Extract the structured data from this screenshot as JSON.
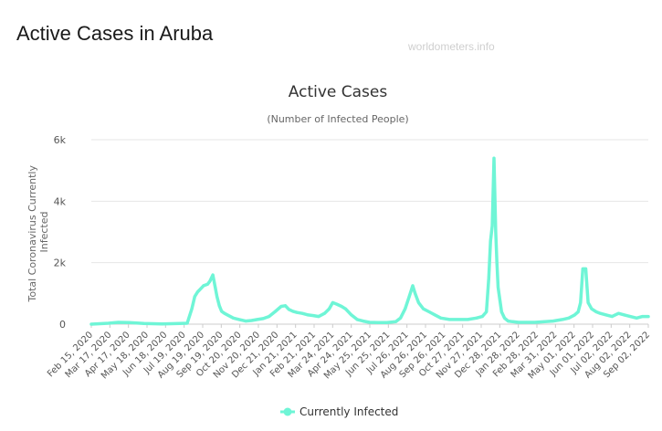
{
  "page": {
    "title": "Active Cases in Aruba",
    "watermark": "worldometers.info"
  },
  "colors": {
    "series": "#6ff5d6",
    "grid": "#e6e6e6",
    "text": "#555555"
  },
  "chart_data": {
    "type": "line",
    "title": "Active Cases",
    "subtitle": "(Number of Infected People)",
    "ylabel": "Total Coronavirus Currently Infected",
    "xlabel": "",
    "ylim": [
      0,
      6000
    ],
    "yticks": [
      {
        "value": 0,
        "label": "0"
      },
      {
        "value": 2000,
        "label": "2k"
      },
      {
        "value": 4000,
        "label": "4k"
      },
      {
        "value": 6000,
        "label": "6k"
      }
    ],
    "xtick_labels": [
      "Feb 15, 2020",
      "Mar 17, 2020",
      "Apr 17, 2020",
      "May 18, 2020",
      "Jun 18, 2020",
      "Jul 19, 2020",
      "Aug 19, 2020",
      "Sep 19, 2020",
      "Oct 20, 2020",
      "Nov 20, 2020",
      "Dec 21, 2020",
      "Jan 21, 2021",
      "Feb 21, 2021",
      "Mar 24, 2021",
      "Apr 24, 2021",
      "May 25, 2021",
      "Jun 25, 2021",
      "Jul 26, 2021",
      "Aug 26, 2021",
      "Sep 26, 2021",
      "Oct 27, 2021",
      "Nov 27, 2021",
      "Dec 28, 2021",
      "Jan 28, 2022",
      "Feb 28, 2022",
      "Mar 31, 2022",
      "May 01, 2022",
      "Jun 01, 2022",
      "Jul 02, 2022",
      "Aug 02, 2022",
      "Sep 02, 2022"
    ],
    "grid": true,
    "legend": {
      "position": "bottom-center"
    },
    "series": [
      {
        "name": "Currently Infected",
        "color": "#6ff5d6",
        "x": [
          "2020-02-15",
          "2020-03-15",
          "2020-04-01",
          "2020-04-20",
          "2020-05-15",
          "2020-06-15",
          "2020-07-15",
          "2020-07-28",
          "2020-08-05",
          "2020-08-10",
          "2020-08-15",
          "2020-08-20",
          "2020-08-25",
          "2020-09-01",
          "2020-09-05",
          "2020-09-10",
          "2020-09-14",
          "2020-09-17",
          "2020-09-21",
          "2020-09-25",
          "2020-09-30",
          "2020-10-05",
          "2020-10-15",
          "2020-10-25",
          "2020-11-05",
          "2020-11-15",
          "2020-11-25",
          "2020-12-05",
          "2020-12-15",
          "2020-12-25",
          "2021-01-05",
          "2021-01-12",
          "2021-01-18",
          "2021-01-25",
          "2021-02-01",
          "2021-02-10",
          "2021-02-20",
          "2021-03-01",
          "2021-03-10",
          "2021-03-20",
          "2021-03-28",
          "2021-04-03",
          "2021-04-10",
          "2021-04-18",
          "2021-04-25",
          "2021-05-05",
          "2021-05-15",
          "2021-05-25",
          "2021-06-05",
          "2021-06-20",
          "2021-07-05",
          "2021-07-20",
          "2021-07-28",
          "2021-08-05",
          "2021-08-12",
          "2021-08-18",
          "2021-08-22",
          "2021-08-28",
          "2021-09-05",
          "2021-09-15",
          "2021-09-25",
          "2021-10-05",
          "2021-10-20",
          "2021-11-05",
          "2021-11-20",
          "2021-12-05",
          "2021-12-15",
          "2021-12-22",
          "2021-12-26",
          "2021-12-29",
          "2022-01-01",
          "2022-01-04",
          "2022-01-07",
          "2022-01-09",
          "2022-01-11",
          "2022-01-14",
          "2022-01-17",
          "2022-01-22",
          "2022-01-28",
          "2022-02-05",
          "2022-02-15",
          "2022-03-01",
          "2022-03-15",
          "2022-04-01",
          "2022-04-15",
          "2022-05-01",
          "2022-05-12",
          "2022-05-22",
          "2022-05-28",
          "2022-06-01",
          "2022-06-05",
          "2022-06-10",
          "2022-06-14",
          "2022-06-20",
          "2022-06-28",
          "2022-07-05",
          "2022-07-15",
          "2022-07-25",
          "2022-08-05",
          "2022-08-15",
          "2022-08-25",
          "2022-09-05",
          "2022-09-15",
          "2022-09-25"
        ],
        "values": [
          0,
          30,
          60,
          50,
          20,
          10,
          20,
          30,
          500,
          900,
          1050,
          1150,
          1250,
          1300,
          1400,
          1600,
          1200,
          900,
          600,
          420,
          350,
          300,
          200,
          150,
          100,
          120,
          150,
          180,
          250,
          400,
          580,
          600,
          480,
          420,
          380,
          350,
          300,
          280,
          250,
          350,
          500,
          700,
          650,
          580,
          500,
          300,
          150,
          100,
          60,
          50,
          50,
          80,
          200,
          500,
          900,
          1250,
          1000,
          700,
          500,
          400,
          300,
          200,
          150,
          150,
          150,
          200,
          250,
          400,
          1500,
          2700,
          3200,
          5400,
          3000,
          2000,
          1200,
          800,
          400,
          200,
          100,
          80,
          60,
          60,
          60,
          80,
          100,
          150,
          200,
          300,
          400,
          700,
          1800,
          1800,
          700,
          500,
          400,
          350,
          300,
          250,
          350,
          300,
          250,
          200,
          250,
          250
        ]
      }
    ]
  }
}
